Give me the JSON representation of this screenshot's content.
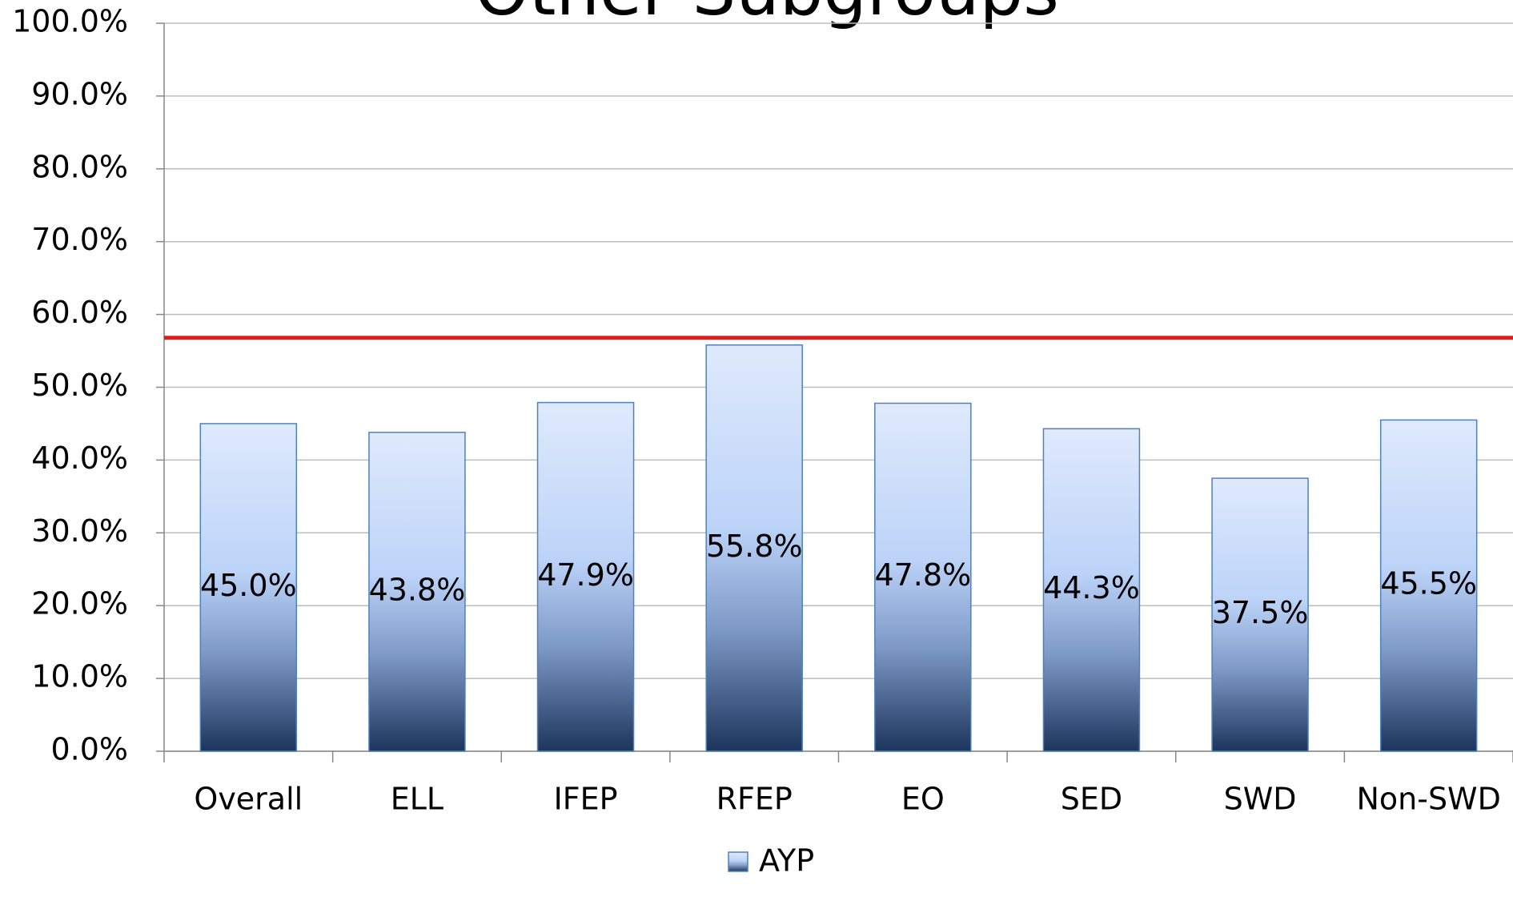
{
  "chart_data": {
    "type": "bar",
    "title": "Other Subgroups",
    "categories": [
      "Overall",
      "ELL",
      "IFEP",
      "RFEP",
      "EO",
      "SED",
      "SWD",
      "Non-SWD"
    ],
    "series": [
      {
        "name": "AYP",
        "color": "#4f81bd",
        "values": [
          45.0,
          43.8,
          47.9,
          55.8,
          47.8,
          44.3,
          37.5,
          45.5
        ],
        "value_labels": [
          "45.0%",
          "43.8%",
          "47.9%",
          "55.8%",
          "47.8%",
          "44.3%",
          "37.5%",
          "45.5%"
        ]
      }
    ],
    "reference_line": 56.8,
    "reference_line_color": "#e41b1b",
    "ylim": [
      0,
      100
    ],
    "yticks": [
      {
        "value": 0,
        "label": "0.0%"
      },
      {
        "value": 10,
        "label": "10.0%"
      },
      {
        "value": 20,
        "label": "20.0%"
      },
      {
        "value": 30,
        "label": "30.0%"
      },
      {
        "value": 40,
        "label": "40.0%"
      },
      {
        "value": 50,
        "label": "50.0%"
      },
      {
        "value": 60,
        "label": "60.0%"
      },
      {
        "value": 70,
        "label": "70.0%"
      },
      {
        "value": 80,
        "label": "80.0%"
      },
      {
        "value": 90,
        "label": "90.0%"
      },
      {
        "value": 100,
        "label": "100.0%"
      }
    ],
    "grid": true,
    "legend": "bottom"
  }
}
